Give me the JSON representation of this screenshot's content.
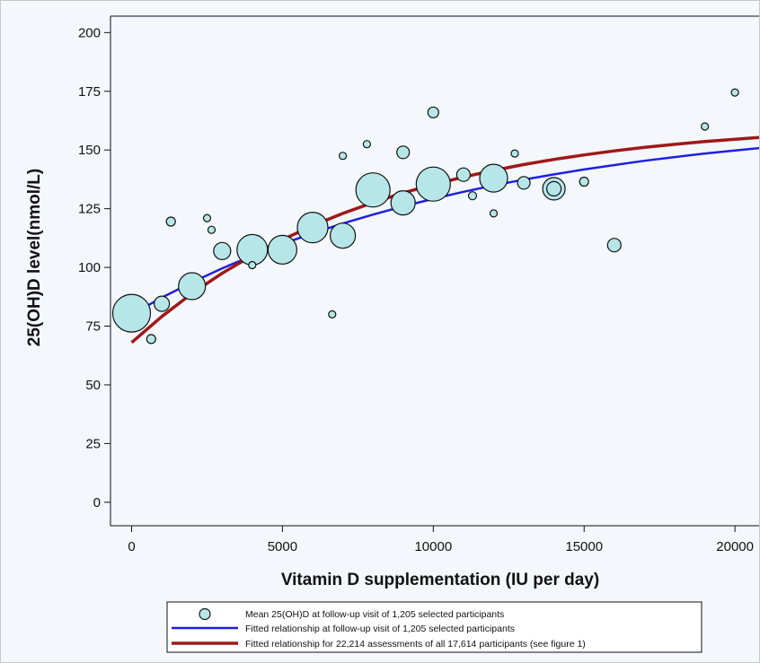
{
  "chart_data": {
    "type": "scatter",
    "xlabel": "Vitamin D supplementation (IU per day)",
    "ylabel": "25(OH)D level(nmol/L)",
    "xlim": [
      -700,
      20800
    ],
    "ylim": [
      -10,
      207
    ],
    "x_ticks": [
      0,
      5000,
      10000,
      15000,
      20000
    ],
    "x_tick_labels": [
      "0",
      "5000",
      "10000",
      "15000",
      "20000"
    ],
    "y_ticks": [
      0,
      25,
      50,
      75,
      100,
      125,
      150,
      175,
      200
    ],
    "y_tick_labels": [
      "0",
      "25",
      "50",
      "75",
      "100",
      "125",
      "150",
      "175",
      "200"
    ],
    "grid": false,
    "legend_position": "bottom",
    "colors": {
      "point_fill": "#b7e6e8",
      "point_stroke": "#111111",
      "blue_line": "#1f1fe0",
      "red_line": "#a01818",
      "background": "#f4f7fb"
    },
    "series": [
      {
        "name": "Mean 25(OH)D at follow-up visit of 1,205 selected participants",
        "kind": "bubble",
        "points": [
          {
            "x": 0,
            "y": 80.5,
            "size": 4.2
          },
          {
            "x": 650,
            "y": 69.5,
            "size": 1.0
          },
          {
            "x": 1000,
            "y": 84.5,
            "size": 1.7
          },
          {
            "x": 1300,
            "y": 119.5,
            "size": 1.0
          },
          {
            "x": 2000,
            "y": 92,
            "size": 3.0
          },
          {
            "x": 2500,
            "y": 121,
            "size": 0.8
          },
          {
            "x": 2650,
            "y": 116,
            "size": 0.8
          },
          {
            "x": 3000,
            "y": 107,
            "size": 1.9
          },
          {
            "x": 4000,
            "y": 107.5,
            "size": 3.4
          },
          {
            "x": 4000,
            "y": 101,
            "size": 0.8
          },
          {
            "x": 5000,
            "y": 107.5,
            "size": 3.2
          },
          {
            "x": 6000,
            "y": 117,
            "size": 3.4
          },
          {
            "x": 6650,
            "y": 80,
            "size": 0.8
          },
          {
            "x": 7000,
            "y": 113.5,
            "size": 2.8
          },
          {
            "x": 7000,
            "y": 147.5,
            "size": 0.8
          },
          {
            "x": 7800,
            "y": 152.5,
            "size": 0.8
          },
          {
            "x": 8000,
            "y": 133,
            "size": 3.8
          },
          {
            "x": 9000,
            "y": 149,
            "size": 1.4
          },
          {
            "x": 9000,
            "y": 127.5,
            "size": 2.7
          },
          {
            "x": 10000,
            "y": 166,
            "size": 1.2
          },
          {
            "x": 10000,
            "y": 135.5,
            "size": 3.8
          },
          {
            "x": 11000,
            "y": 139.5,
            "size": 1.5
          },
          {
            "x": 11300,
            "y": 130.5,
            "size": 0.9
          },
          {
            "x": 12000,
            "y": 138,
            "size": 3.1
          },
          {
            "x": 12000,
            "y": 123,
            "size": 0.8
          },
          {
            "x": 12700,
            "y": 148.5,
            "size": 0.8
          },
          {
            "x": 13000,
            "y": 136,
            "size": 1.4
          },
          {
            "x": 14000,
            "y": 133.5,
            "size": 2.5
          },
          {
            "x": 14000,
            "y": 133.5,
            "size": 1.6
          },
          {
            "x": 15000,
            "y": 136.5,
            "size": 1.0
          },
          {
            "x": 16000,
            "y": 109.5,
            "size": 1.5
          },
          {
            "x": 19000,
            "y": 160,
            "size": 0.8
          },
          {
            "x": 20000,
            "y": 174.5,
            "size": 0.8
          }
        ]
      },
      {
        "name": "Fitted relationship at follow-up visit of 1,205 selected participants",
        "kind": "line",
        "color": "#1f1fe0",
        "x": [
          0,
          1000,
          2000,
          3000,
          4000,
          5000,
          6000,
          7000,
          8000,
          9000,
          10000,
          11000,
          12000,
          13000,
          14000,
          15000,
          16000,
          17000,
          18000,
          19000,
          20000,
          20800
        ],
        "values": [
          80.0,
          87.1,
          93.6,
          99.6,
          105.0,
          110.0,
          114.5,
          118.7,
          122.5,
          126.0,
          129.2,
          132.2,
          134.9,
          137.4,
          139.6,
          141.7,
          143.6,
          145.4,
          147.0,
          148.5,
          149.8,
          150.8
        ]
      },
      {
        "name": "Fitted relationship for 22,214 assessments of all 17,614 participants (see figure 1)",
        "kind": "line",
        "color": "#a01818",
        "x": [
          0,
          1000,
          2000,
          3000,
          4000,
          5000,
          6000,
          7000,
          8000,
          9000,
          10000,
          11000,
          12000,
          13000,
          14000,
          15000,
          16000,
          17000,
          18000,
          19000,
          20000,
          20800
        ],
        "values": [
          68.0,
          79.1,
          88.9,
          97.5,
          105.1,
          111.8,
          117.8,
          123.0,
          127.6,
          131.7,
          135.3,
          138.5,
          141.3,
          143.8,
          146.0,
          147.9,
          149.6,
          151.1,
          152.4,
          153.6,
          154.6,
          155.3
        ]
      }
    ]
  }
}
